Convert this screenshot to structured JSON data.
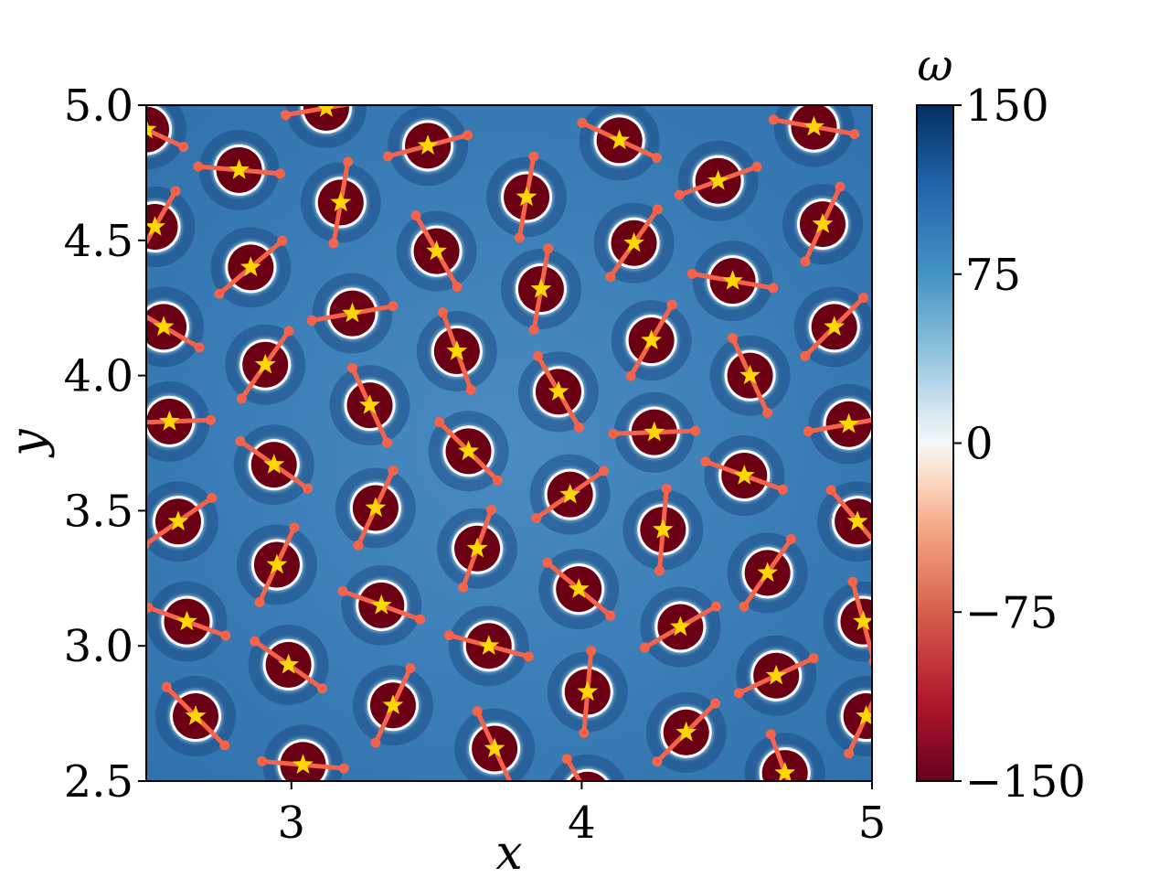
{
  "chart_data": {
    "type": "heatmap",
    "title": "",
    "xlabel": "x",
    "ylabel": "y",
    "xlim": [
      2.5,
      5.0
    ],
    "ylim": [
      2.5,
      5.0
    ],
    "x_ticks": [
      {
        "value": 3,
        "label": "3"
      },
      {
        "value": 4,
        "label": "4"
      },
      {
        "value": 5,
        "label": "5"
      }
    ],
    "y_ticks": [
      {
        "value": 2.5,
        "label": "2.5"
      },
      {
        "value": 3.0,
        "label": "3.0"
      },
      {
        "value": 3.5,
        "label": "3.5"
      },
      {
        "value": 4.0,
        "label": "4.0"
      },
      {
        "value": 4.5,
        "label": "4.5"
      },
      {
        "value": 5.0,
        "label": "5.0"
      }
    ],
    "colorbar": {
      "label": "ω",
      "range": [
        -150,
        150
      ],
      "colormap": "RdBu",
      "ticks": [
        {
          "value": 150,
          "label": "150"
        },
        {
          "value": 75,
          "label": "75"
        },
        {
          "value": 0,
          "label": "0"
        },
        {
          "value": -75,
          "label": "−75"
        },
        {
          "value": -150,
          "label": "−150"
        }
      ]
    },
    "grid": false,
    "colors": {
      "background": "#3a7db8",
      "vortex": "#6b0014",
      "ring": "#ffffff",
      "dipole": "#f4634a",
      "star": "#ffd700"
    },
    "vortices": [
      {
        "x": 2.5,
        "y": 4.91,
        "angle": -25
      },
      {
        "x": 2.82,
        "y": 4.76,
        "angle": -5
      },
      {
        "x": 3.12,
        "y": 4.99,
        "angle": 10
      },
      {
        "x": 3.17,
        "y": 4.64,
        "angle": 80
      },
      {
        "x": 3.47,
        "y": 4.85,
        "angle": 15
      },
      {
        "x": 3.81,
        "y": 4.66,
        "angle": 80
      },
      {
        "x": 4.13,
        "y": 4.87,
        "angle": -25
      },
      {
        "x": 4.47,
        "y": 4.72,
        "angle": 20
      },
      {
        "x": 4.8,
        "y": 4.92,
        "angle": -10
      },
      {
        "x": 2.53,
        "y": 4.55,
        "angle": 60
      },
      {
        "x": 2.86,
        "y": 4.4,
        "angle": 40
      },
      {
        "x": 3.5,
        "y": 4.46,
        "angle": -60
      },
      {
        "x": 4.18,
        "y": 4.49,
        "angle": 55
      },
      {
        "x": 4.83,
        "y": 4.56,
        "angle": 65
      },
      {
        "x": 2.56,
        "y": 4.18,
        "angle": -30
      },
      {
        "x": 3.21,
        "y": 4.23,
        "angle": 10
      },
      {
        "x": 3.86,
        "y": 4.32,
        "angle": 80
      },
      {
        "x": 4.52,
        "y": 4.35,
        "angle": -10
      },
      {
        "x": 4.87,
        "y": 4.18,
        "angle": 45
      },
      {
        "x": 2.91,
        "y": 4.04,
        "angle": 55
      },
      {
        "x": 3.57,
        "y": 4.09,
        "angle": -70
      },
      {
        "x": 4.24,
        "y": 4.13,
        "angle": 60
      },
      {
        "x": 4.58,
        "y": 4.0,
        "angle": -65
      },
      {
        "x": 3.27,
        "y": 3.89,
        "angle": -65
      },
      {
        "x": 3.92,
        "y": 3.94,
        "angle": -60
      },
      {
        "x": 2.58,
        "y": 3.83,
        "angle": 2
      },
      {
        "x": 4.25,
        "y": 3.79,
        "angle": 2
      },
      {
        "x": 4.92,
        "y": 3.82,
        "angle": 10
      },
      {
        "x": 2.94,
        "y": 3.67,
        "angle": -35
      },
      {
        "x": 3.61,
        "y": 3.72,
        "angle": -45
      },
      {
        "x": 4.56,
        "y": 3.63,
        "angle": -20
      },
      {
        "x": 3.29,
        "y": 3.51,
        "angle": 65
      },
      {
        "x": 3.96,
        "y": 3.56,
        "angle": 35
      },
      {
        "x": 2.61,
        "y": 3.46,
        "angle": 35
      },
      {
        "x": 4.28,
        "y": 3.43,
        "angle": 85
      },
      {
        "x": 4.95,
        "y": 3.46,
        "angle": -50
      },
      {
        "x": 2.95,
        "y": 3.3,
        "angle": 65
      },
      {
        "x": 3.64,
        "y": 3.36,
        "angle": 70
      },
      {
        "x": 4.64,
        "y": 3.27,
        "angle": 55
      },
      {
        "x": 3.31,
        "y": 3.15,
        "angle": -20
      },
      {
        "x": 3.99,
        "y": 3.21,
        "angle": -40
      },
      {
        "x": 2.64,
        "y": 3.09,
        "angle": -20
      },
      {
        "x": 4.34,
        "y": 3.07,
        "angle": 30
      },
      {
        "x": 4.97,
        "y": 3.09,
        "angle": -75
      },
      {
        "x": 2.99,
        "y": 2.93,
        "angle": -35
      },
      {
        "x": 3.68,
        "y": 3.0,
        "angle": -15
      },
      {
        "x": 4.02,
        "y": 2.83,
        "angle": 85
      },
      {
        "x": 4.67,
        "y": 2.89,
        "angle": 25
      },
      {
        "x": 3.35,
        "y": 2.78,
        "angle": 65
      },
      {
        "x": 2.67,
        "y": 2.74,
        "angle": -45
      },
      {
        "x": 4.36,
        "y": 2.68,
        "angle": 45
      },
      {
        "x": 4.98,
        "y": 2.74,
        "angle": 65
      },
      {
        "x": 3.04,
        "y": 2.56,
        "angle": -5
      },
      {
        "x": 3.7,
        "y": 2.62,
        "angle": -65
      },
      {
        "x": 4.7,
        "y": 2.53,
        "angle": -70
      },
      {
        "x": 4.02,
        "y": 2.45,
        "angle": -60
      }
    ]
  }
}
